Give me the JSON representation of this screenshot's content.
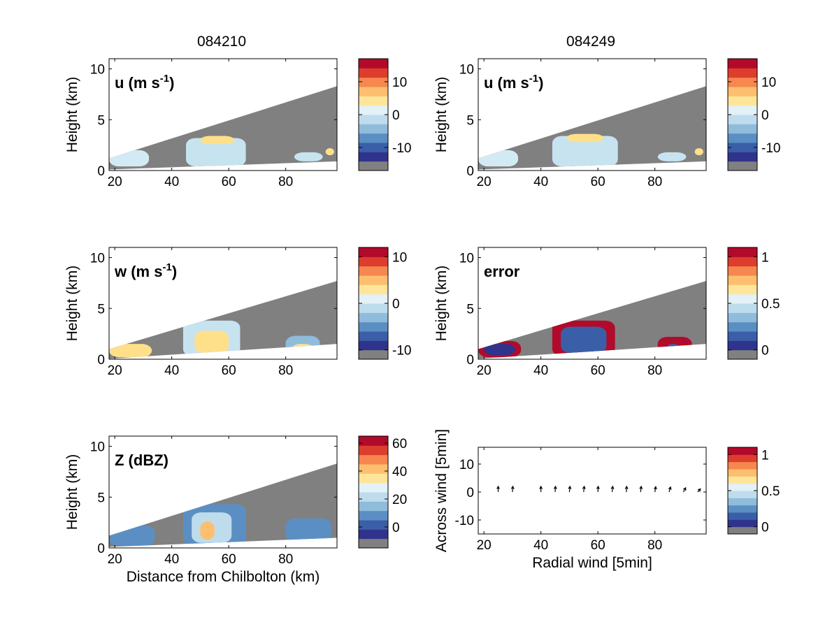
{
  "column_titles": [
    "084210",
    "084249"
  ],
  "chart_data": [
    {
      "type": "heatmap",
      "id": "u1",
      "label": "u (m s",
      "label_sup": "-1",
      "label_close": ")",
      "ylabel": "Height (km)",
      "xlabel": "",
      "xlim": [
        18,
        98
      ],
      "ylim": [
        0,
        11
      ],
      "xticks": [
        20,
        40,
        60,
        80
      ],
      "yticks": [
        0,
        5,
        10
      ],
      "cone_top": [
        [
          18,
          1.2
        ],
        [
          98,
          8.3
        ]
      ],
      "cone_bottom": [
        [
          18,
          0.1
        ],
        [
          98,
          0.9
        ]
      ],
      "colorbar": {
        "range": [
          -17,
          17
        ],
        "ticks": [
          10,
          0,
          -10
        ],
        "colors": [
          "#808080",
          "#30338c",
          "#3a5fa8",
          "#5b8fc4",
          "#8fbcdb",
          "#bfdcec",
          "#e3f1f8",
          "#fee599",
          "#fdbf6f",
          "#f5874f",
          "#dd3d2d",
          "#b20a2a"
        ]
      },
      "blobs": [
        {
          "x": [
            18,
            32
          ],
          "y": [
            0.4,
            2.0
          ],
          "c": "#d3eaf4"
        },
        {
          "x": [
            45,
            66
          ],
          "y": [
            0.4,
            3.2
          ],
          "c": "#c7e3f0"
        },
        {
          "x": [
            50,
            62
          ],
          "y": [
            2.6,
            3.4
          ],
          "c": "#fee08b"
        },
        {
          "x": [
            83,
            93
          ],
          "y": [
            0.9,
            1.8
          ],
          "c": "#c7e3f0"
        },
        {
          "x": [
            94,
            97
          ],
          "y": [
            1.5,
            2.2
          ],
          "c": "#fee08b"
        }
      ]
    },
    {
      "type": "heatmap",
      "id": "u2",
      "label": "u (m s",
      "label_sup": "-1",
      "label_close": ")",
      "ylabel": "Height (km)",
      "xlabel": "",
      "xlim": [
        18,
        98
      ],
      "ylim": [
        0,
        11
      ],
      "xticks": [
        20,
        40,
        60,
        80
      ],
      "yticks": [
        0,
        5,
        10
      ],
      "cone_top": [
        [
          18,
          1.2
        ],
        [
          98,
          8.3
        ]
      ],
      "cone_bottom": [
        [
          18,
          0.1
        ],
        [
          98,
          0.9
        ]
      ],
      "colorbar": {
        "range": [
          -17,
          17
        ],
        "ticks": [
          10,
          0,
          -10
        ],
        "colors": [
          "#808080",
          "#30338c",
          "#3a5fa8",
          "#5b8fc4",
          "#8fbcdb",
          "#bfdcec",
          "#e3f1f8",
          "#fee599",
          "#fdbf6f",
          "#f5874f",
          "#dd3d2d",
          "#b20a2a"
        ]
      },
      "blobs": [
        {
          "x": [
            18,
            32
          ],
          "y": [
            0.4,
            2.0
          ],
          "c": "#d3eaf4"
        },
        {
          "x": [
            44,
            67
          ],
          "y": [
            0.4,
            3.4
          ],
          "c": "#c7e3f0"
        },
        {
          "x": [
            49,
            62
          ],
          "y": [
            2.8,
            3.6
          ],
          "c": "#fee08b"
        },
        {
          "x": [
            81,
            91
          ],
          "y": [
            0.9,
            1.8
          ],
          "c": "#c7e3f0"
        },
        {
          "x": [
            94,
            97
          ],
          "y": [
            1.5,
            2.2
          ],
          "c": "#fee08b"
        }
      ]
    },
    {
      "type": "heatmap",
      "id": "w",
      "label": "w (m s",
      "label_sup": "-1",
      "label_close": ")",
      "ylabel": "Height (km)",
      "xlabel": "",
      "xlim": [
        18,
        98
      ],
      "ylim": [
        0,
        11
      ],
      "xticks": [
        20,
        40,
        60,
        80
      ],
      "yticks": [
        0,
        5,
        10
      ],
      "cone_top": [
        [
          18,
          1.0
        ],
        [
          98,
          7.7
        ]
      ],
      "cone_bottom": [
        [
          18,
          0.05
        ],
        [
          98,
          1.5
        ]
      ],
      "colorbar": {
        "range": [
          -12,
          12
        ],
        "ticks": [
          10,
          0,
          -10
        ],
        "colors": [
          "#808080",
          "#30338c",
          "#3a5fa8",
          "#5b8fc4",
          "#8fbcdb",
          "#bfdcec",
          "#e3f1f8",
          "#fee599",
          "#fdbf6f",
          "#f5874f",
          "#dd3d2d",
          "#b20a2a"
        ]
      },
      "blobs": [
        {
          "x": [
            18,
            33
          ],
          "y": [
            0.2,
            1.5
          ],
          "c": "#fee08b"
        },
        {
          "x": [
            44,
            64
          ],
          "y": [
            0.3,
            3.8
          ],
          "c": "#c7e3f0"
        },
        {
          "x": [
            48,
            60
          ],
          "y": [
            0.6,
            2.8
          ],
          "c": "#fee08b"
        },
        {
          "x": [
            80,
            92
          ],
          "y": [
            0.5,
            2.3
          ],
          "c": "#8fbcdb"
        },
        {
          "x": [
            82,
            90
          ],
          "y": [
            0.6,
            1.5
          ],
          "c": "#fee08b"
        }
      ]
    },
    {
      "type": "heatmap",
      "id": "error",
      "label": "error",
      "label_sup": "",
      "label_close": "",
      "ylabel": "Height (km)",
      "xlabel": "",
      "xlim": [
        18,
        98
      ],
      "ylim": [
        0,
        11
      ],
      "xticks": [
        20,
        40,
        60,
        80
      ],
      "yticks": [
        0,
        5,
        10
      ],
      "cone_top": [
        [
          18,
          1.0
        ],
        [
          98,
          7.7
        ]
      ],
      "cone_bottom": [
        [
          18,
          0.05
        ],
        [
          98,
          1.5
        ]
      ],
      "colorbar": {
        "range": [
          -0.1,
          1.1
        ],
        "ticks": [
          1,
          0.5,
          0
        ],
        "colors": [
          "#808080",
          "#30338c",
          "#3a5fa8",
          "#5b8fc4",
          "#8fbcdb",
          "#bfdcec",
          "#e3f1f8",
          "#fee599",
          "#fdbf6f",
          "#f5874f",
          "#dd3d2d",
          "#b20a2a"
        ]
      },
      "blobs": [
        {
          "x": [
            18,
            33
          ],
          "y": [
            0.2,
            1.8
          ],
          "c": "#b20a2a"
        },
        {
          "x": [
            20,
            31
          ],
          "y": [
            0.4,
            1.5
          ],
          "c": "#30338c"
        },
        {
          "x": [
            44,
            66
          ],
          "y": [
            0.3,
            3.8
          ],
          "c": "#b20a2a"
        },
        {
          "x": [
            47,
            63
          ],
          "y": [
            0.6,
            3.2
          ],
          "c": "#3a5fa8"
        },
        {
          "x": [
            81,
            93
          ],
          "y": [
            0.5,
            2.2
          ],
          "c": "#b20a2a"
        },
        {
          "x": [
            84,
            89
          ],
          "y": [
            0.7,
            1.5
          ],
          "c": "#3a5fa8"
        }
      ]
    },
    {
      "type": "heatmap",
      "id": "z",
      "label": "Z (dBZ)",
      "label_sup": "",
      "label_close": "",
      "ylabel": "Height (km)",
      "xlabel": "Distance from Chilbolton (km)",
      "xlim": [
        18,
        98
      ],
      "ylim": [
        0,
        11
      ],
      "xticks": [
        20,
        40,
        60,
        80
      ],
      "yticks": [
        0,
        5,
        10
      ],
      "cone_top": [
        [
          18,
          1.2
        ],
        [
          98,
          8.3
        ]
      ],
      "cone_bottom": [
        [
          18,
          0.1
        ],
        [
          98,
          1.0
        ]
      ],
      "colorbar": {
        "range": [
          -15,
          65
        ],
        "ticks": [
          60,
          40,
          20,
          0
        ],
        "colors": [
          "#808080",
          "#30338c",
          "#3a5fa8",
          "#5b8fc4",
          "#8fbcdb",
          "#bfdcec",
          "#e3f1f8",
          "#fee599",
          "#fdbf6f",
          "#f5874f",
          "#dd3d2d",
          "#b20a2a"
        ]
      },
      "blobs": [
        {
          "x": [
            18,
            34
          ],
          "y": [
            0.2,
            2.2
          ],
          "c": "#5b8fc4"
        },
        {
          "x": [
            44,
            66
          ],
          "y": [
            0.3,
            4.3
          ],
          "c": "#5b8fc4"
        },
        {
          "x": [
            47,
            61
          ],
          "y": [
            0.5,
            3.5
          ],
          "c": "#bfdcec"
        },
        {
          "x": [
            50,
            55
          ],
          "y": [
            0.8,
            2.6
          ],
          "c": "#fdbf6f"
        },
        {
          "x": [
            80,
            96
          ],
          "y": [
            0.6,
            2.9
          ],
          "c": "#5b8fc4"
        }
      ]
    },
    {
      "type": "scatter",
      "id": "quiver",
      "label": "",
      "ylabel": "Across wind [5min]",
      "xlabel": "Radial wind [5min]",
      "xlim": [
        18,
        98
      ],
      "ylim": [
        -15,
        16
      ],
      "xticks": [
        20,
        40,
        60,
        80
      ],
      "yticks": [
        10,
        0,
        -10
      ],
      "arrows": {
        "x": [
          25,
          30,
          40,
          45,
          50,
          55,
          60,
          65,
          70,
          75,
          80,
          85,
          90,
          95
        ],
        "dx": [
          0,
          0.15,
          0,
          0.1,
          0.2,
          0.2,
          0.1,
          0.2,
          0.1,
          0.2,
          0.3,
          0.5,
          0.8,
          1.0
        ],
        "dy": [
          2,
          2,
          2,
          2,
          2,
          2,
          2,
          2,
          2,
          2,
          1.9,
          1.8,
          1.5,
          1.1
        ]
      },
      "colorbar": {
        "range": [
          -0.1,
          1.1
        ],
        "ticks": [
          1,
          0.5,
          0
        ],
        "colors": [
          "#808080",
          "#30338c",
          "#3a5fa8",
          "#5b8fc4",
          "#8fbcdb",
          "#bfdcec",
          "#e3f1f8",
          "#fee599",
          "#fdbf6f",
          "#f5874f",
          "#dd3d2d",
          "#b20a2a"
        ]
      }
    }
  ]
}
